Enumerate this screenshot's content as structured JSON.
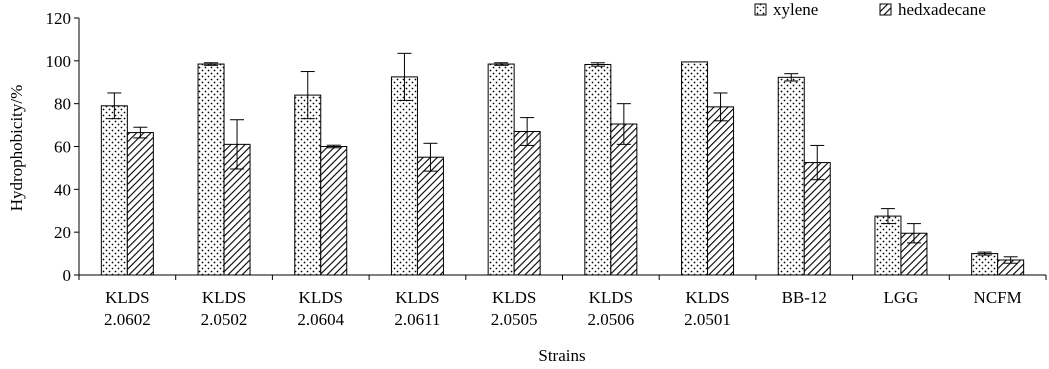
{
  "chart_data": {
    "type": "bar",
    "categories": [
      [
        "KLDS",
        "2.0602"
      ],
      [
        "KLDS",
        "2.0502"
      ],
      [
        "KLDS",
        "2.0604"
      ],
      [
        "KLDS",
        "2.0611"
      ],
      [
        "KLDS",
        "2.0505"
      ],
      [
        "KLDS",
        "2.0506"
      ],
      [
        "KLDS",
        "2.0501"
      ],
      [
        "BB-12"
      ],
      [
        "LGG"
      ],
      [
        "NCFM"
      ]
    ],
    "series": [
      {
        "name": "xylene",
        "pattern": "dots",
        "values": [
          79,
          98.5,
          84,
          92.5,
          98.5,
          98.3,
          99.5,
          92.3,
          27.5,
          10
        ],
        "errors": [
          6,
          0.6,
          11,
          11,
          0.6,
          0.8,
          0,
          1.7,
          3.5,
          0.7
        ]
      },
      {
        "name": "hedxadecane",
        "pattern": "hatch",
        "values": [
          66.5,
          61,
          60,
          55,
          67,
          70.5,
          78.5,
          52.5,
          19.5,
          7
        ],
        "errors": [
          2.5,
          11.5,
          0.6,
          6.5,
          6.5,
          9.5,
          6.5,
          8,
          4.5,
          1.5
        ]
      }
    ],
    "title": "",
    "xlabel": "Strains",
    "ylabel": "Hydrophobicity/%",
    "ylim": [
      0,
      120
    ],
    "yticks": [
      0,
      20,
      40,
      60,
      80,
      100,
      120
    ],
    "grid": false,
    "legend": "top-right"
  }
}
